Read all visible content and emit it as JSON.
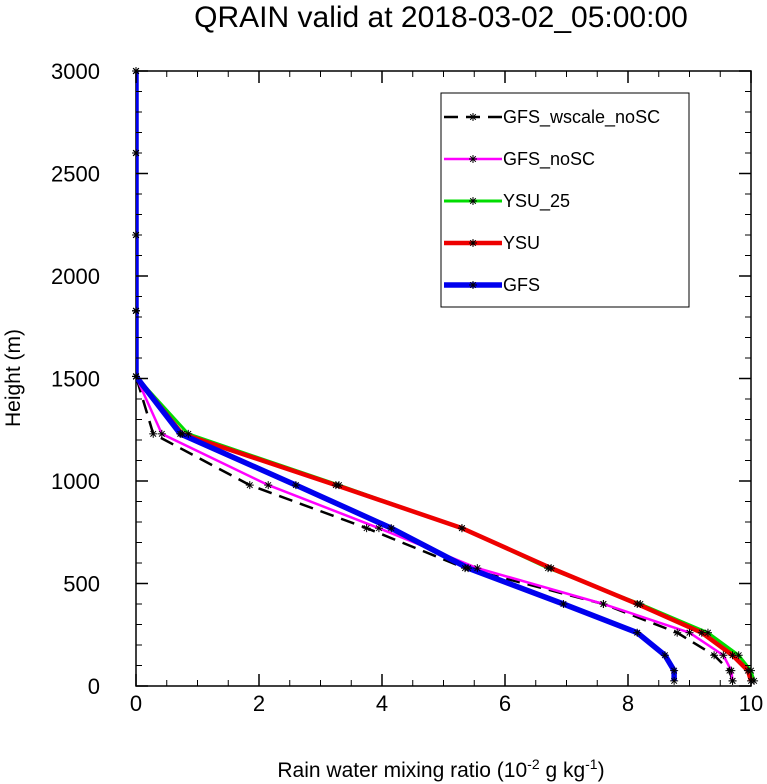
{
  "chart_data": {
    "type": "line",
    "title": "QRAIN valid at 2018-03-02_05:00:00",
    "xlabel": "Rain water mixing ratio (10",
    "xlabel_exp1": "-2",
    "xlabel_mid": " g kg",
    "xlabel_exp2": "-1",
    "xlabel_end": ")",
    "ylabel": "Height (m)",
    "xlim": [
      0,
      10
    ],
    "ylim": [
      0,
      3000
    ],
    "xticks": [
      0,
      2,
      4,
      6,
      8,
      10
    ],
    "yticks": [
      0,
      500,
      1000,
      1500,
      2000,
      2500,
      3000
    ],
    "legend_position": "top-right",
    "heights": [
      3000,
      2600,
      2200,
      1830,
      1510,
      1230,
      980,
      770,
      575,
      400,
      260,
      150,
      75,
      25
    ],
    "series": [
      {
        "name": "GFS_wscale_noSC",
        "color": "#000000",
        "width": 2.5,
        "dash": "14,8",
        "values": [
          0,
          0,
          0,
          0,
          0,
          0.28,
          1.85,
          3.75,
          5.35,
          7.6,
          8.8,
          9.4,
          9.65,
          9.7
        ]
      },
      {
        "name": "GFS_noSC",
        "color": "#ff00ff",
        "width": 2.5,
        "dash": "",
        "values": [
          0,
          0,
          0,
          0,
          0,
          0.42,
          2.15,
          3.95,
          5.55,
          7.6,
          9.0,
          9.55,
          9.68,
          9.7
        ]
      },
      {
        "name": "YSU_25",
        "color": "#00dd00",
        "width": 3,
        "dash": "",
        "values": [
          0,
          0,
          0,
          0,
          0,
          0.85,
          3.3,
          5.3,
          6.7,
          8.2,
          9.3,
          9.8,
          10.0,
          10.05
        ]
      },
      {
        "name": "YSU",
        "color": "#ee0000",
        "width": 4.5,
        "dash": "",
        "values": [
          0,
          0,
          0,
          0,
          0,
          0.75,
          3.25,
          5.3,
          6.75,
          8.15,
          9.2,
          9.7,
          9.95,
          10.0
        ]
      },
      {
        "name": "GFS",
        "color": "#0000ee",
        "width": 5.5,
        "dash": "",
        "values": [
          0,
          0,
          0,
          0,
          0,
          0.72,
          2.6,
          4.15,
          5.4,
          6.95,
          8.15,
          8.6,
          8.75,
          8.75
        ]
      }
    ]
  }
}
